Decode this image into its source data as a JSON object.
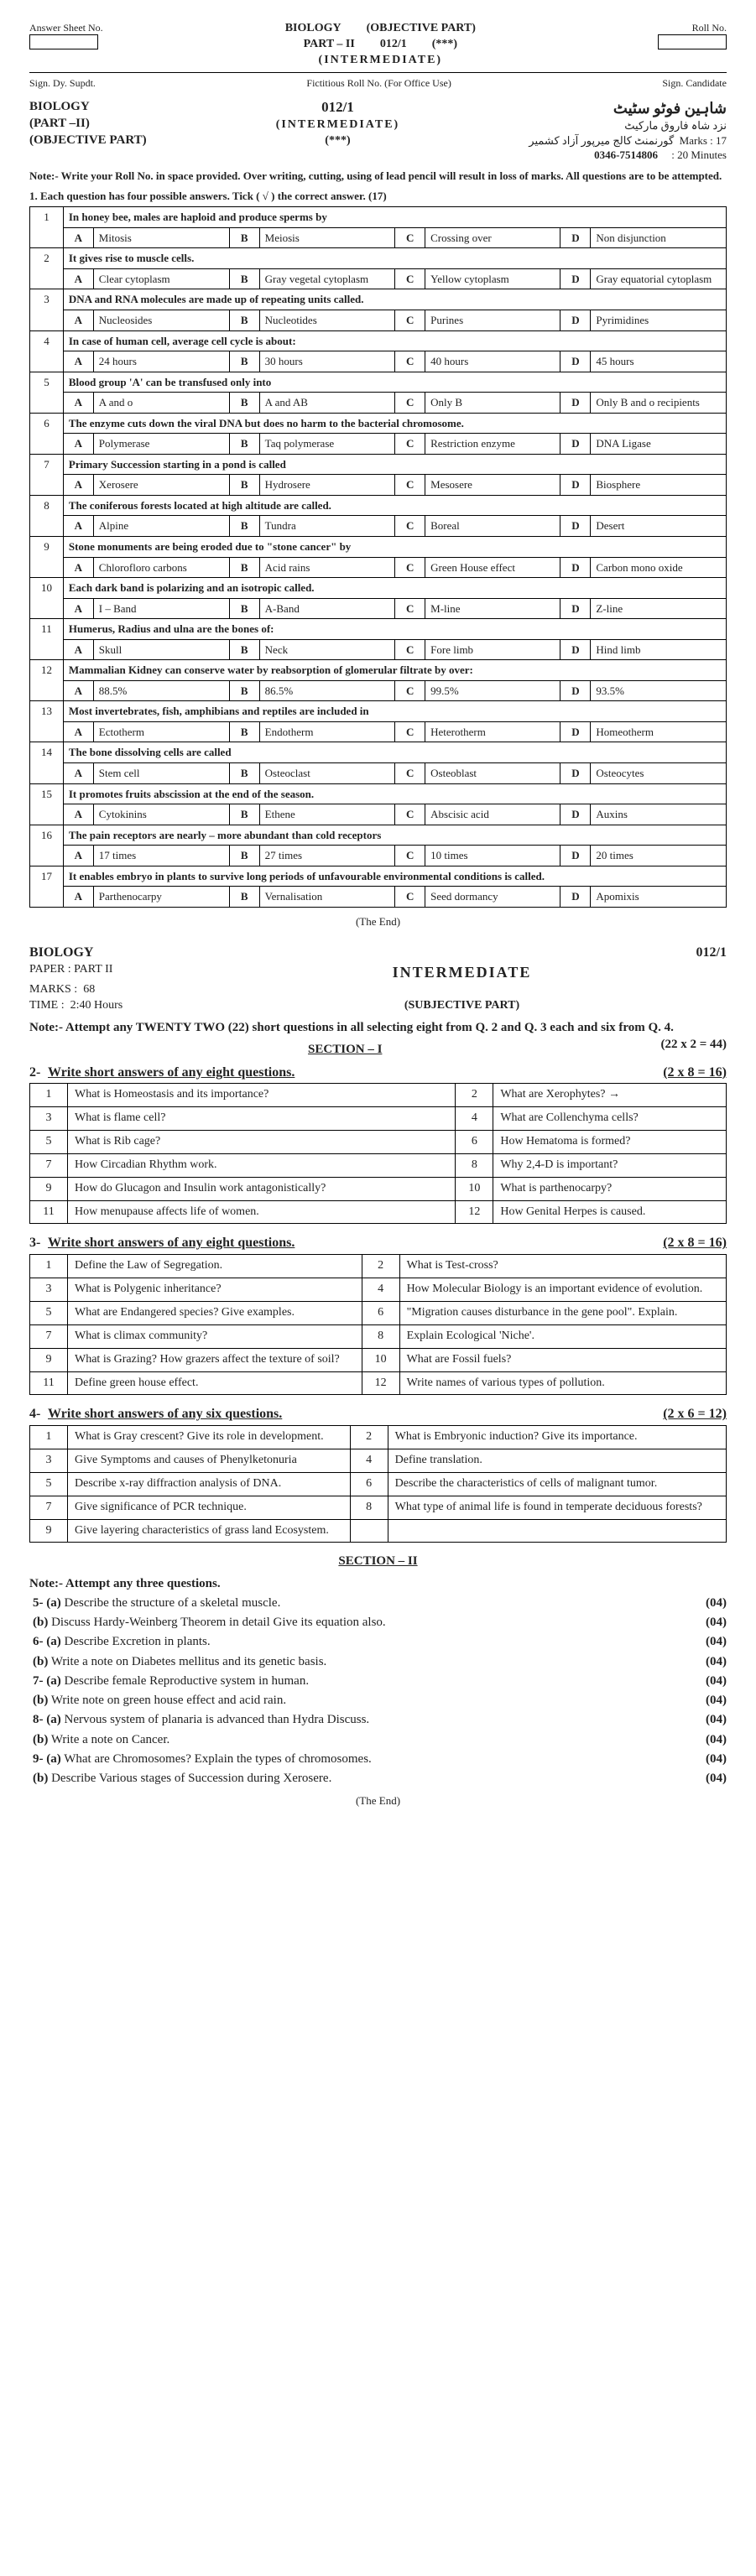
{
  "header": {
    "answerSheetLabel": "Answer Sheet No.",
    "rollNoLabel": "Roll No.",
    "subject": "BIOLOGY",
    "objectivePart": "(OBJECTIVE PART)",
    "part": "PART – II",
    "code": "012/1",
    "stars": "(***)",
    "level": "(INTERMEDIATE)",
    "sigDy": "Sign. Dy. Supdt.",
    "fictRoll": "Fictitious Roll No. (For Office Use)",
    "sigCand": "Sign. Candidate"
  },
  "obj": {
    "subj": "BIOLOGY",
    "part": "(PART –II)",
    "objPart": "(OBJECTIVE PART)",
    "code": "012/1",
    "level": "(INTERMEDIATE)",
    "stars": "(***)",
    "urdu1": "شاہین فوٹو سٹیٹ",
    "urdu2": "نزد شاہ فاروق مارکیٹ",
    "urdu3": "گورنمنٹ کالج میرپور آزاد کشمیر",
    "phone": "0346-7514806",
    "marksLab": "Marks",
    "marks": "17",
    "timeLab": "Time",
    "time": "20 Minutes",
    "note": "Note:- Write your Roll No. in space provided. Over writing, cutting, using of lead pencil will result in loss of marks. All questions are to be attempted.",
    "q1": "1.   Each question has four possible answers. Tick (  √  ) the correct answer.        (17)"
  },
  "mcq": [
    {
      "n": "1",
      "stem": "In honey bee, males are haploid and produce sperms by",
      "opts": [
        "Mitosis",
        "Meiosis",
        "Crossing over",
        "Non disjunction"
      ]
    },
    {
      "n": "2",
      "stem": "It gives rise to muscle cells.",
      "opts": [
        "Clear cytoplasm",
        "Gray vegetal cytoplasm",
        "Yellow cytoplasm",
        "Gray equatorial cytoplasm"
      ]
    },
    {
      "n": "3",
      "stem": "DNA and RNA molecules are made up of repeating units called.",
      "opts": [
        "Nucleosides",
        "Nucleotides",
        "Purines",
        "Pyrimidines"
      ]
    },
    {
      "n": "4",
      "stem": "In case of human cell, average cell cycle is about:",
      "opts": [
        "24 hours",
        "30 hours",
        "40 hours",
        "45 hours"
      ]
    },
    {
      "n": "5",
      "stem": "Blood group 'A' can be transfused only into",
      "opts": [
        "A and o",
        "A and AB",
        "Only B",
        "Only B and o recipients"
      ]
    },
    {
      "n": "6",
      "stem": "The enzyme cuts down the viral DNA but does no harm to the bacterial chromosome.",
      "opts": [
        "Polymerase",
        "Taq polymerase",
        "Restriction enzyme",
        "DNA Ligase"
      ]
    },
    {
      "n": "7",
      "stem": "Primary Succession starting in a pond is called",
      "opts": [
        "Xerosere",
        "Hydrosere",
        "Mesosere",
        "Biosphere"
      ]
    },
    {
      "n": "8",
      "stem": "The coniferous forests located at high altitude are called.",
      "opts": [
        "Alpine",
        "Tundra",
        "Boreal",
        "Desert"
      ]
    },
    {
      "n": "9",
      "stem": "Stone monuments are being eroded due to \"stone cancer\" by",
      "opts": [
        "Chlorofloro carbons",
        "Acid rains",
        "Green House effect",
        "Carbon mono oxide"
      ]
    },
    {
      "n": "10",
      "stem": "Each dark band is polarizing and an isotropic called.",
      "opts": [
        "I – Band",
        "A-Band",
        "M-line",
        "Z-line"
      ]
    },
    {
      "n": "11",
      "stem": "Humerus, Radius and ulna are the bones of:",
      "opts": [
        "Skull",
        "Neck",
        "Fore limb",
        "Hind limb"
      ]
    },
    {
      "n": "12",
      "stem": "Mammalian Kidney can conserve water by reabsorption of glomerular filtrate by over:",
      "opts": [
        "88.5%",
        "86.5%",
        "99.5%",
        "93.5%"
      ]
    },
    {
      "n": "13",
      "stem": "Most invertebrates, fish, amphibians and reptiles are included in",
      "opts": [
        "Ectotherm",
        "Endotherm",
        "Heterotherm",
        "Homeotherm"
      ]
    },
    {
      "n": "14",
      "stem": "The bone dissolving cells are called",
      "opts": [
        "Stem cell",
        "Osteoclast",
        "Osteoblast",
        "Osteocytes"
      ]
    },
    {
      "n": "15",
      "stem": "It promotes fruits abscission at the end of the season.",
      "opts": [
        "Cytokinins",
        "Ethene",
        "Abscisic acid",
        "Auxins"
      ]
    },
    {
      "n": "16",
      "stem": "The pain receptors are nearly – more abundant than cold receptors",
      "opts": [
        "17 times",
        "27 times",
        "10 times",
        "20 times"
      ]
    },
    {
      "n": "17",
      "stem": "It enables embryo in plants to survive long periods of unfavourable environmental conditions is called.",
      "opts": [
        "Parthenocarpy",
        "Vernalisation",
        "Seed dormancy",
        "Apomixis"
      ]
    }
  ],
  "theEnd": "(The  End)",
  "subj": {
    "hSubj": "BIOLOGY",
    "hCode": "012/1",
    "paper": "PAPER :  PART  II",
    "level": "INTERMEDIATE",
    "marksL": "MARKS :",
    "marks": "68",
    "timeL": "TIME  :",
    "time": "2:40 Hours",
    "subjPart": "(SUBJECTIVE PART)",
    "note": "Note:-   Attempt any TWENTY TWO (22) short questions in all selecting eight from  Q. 2 and  Q. 3 each and six from Q. 4.",
    "noteMarks": "(22 x 2 = 44)",
    "sec1": "SECTION – I"
  },
  "q2": {
    "head": "Write short answers of any eight questions.",
    "marks": "(2 x 8 = 16)",
    "rows": [
      [
        "1",
        "What is Homeostasis and its importance?",
        "2",
        "What are Xerophytes?         →"
      ],
      [
        "3",
        "What is flame cell?",
        "4",
        "What are Collenchyma cells?"
      ],
      [
        "5",
        "What is Rib cage?",
        "6",
        "How Hematoma is formed?"
      ],
      [
        "7",
        "How Circadian Rhythm work.",
        "8",
        "Why 2,4-D is important?"
      ],
      [
        "9",
        "How do Glucagon and Insulin work antagonistically?",
        "10",
        "What is parthenocarpy?"
      ],
      [
        "11",
        "How menupause affects life of women.",
        "12",
        "How Genital Herpes is caused."
      ]
    ]
  },
  "q3": {
    "head": "Write short answers of any eight questions.",
    "marks": "(2 x 8 = 16)",
    "rows": [
      [
        "1",
        "Define the Law of Segregation.",
        "2",
        "What is Test-cross?"
      ],
      [
        "3",
        "What is Polygenic inheritance?",
        "4",
        "How Molecular Biology is an important evidence of evolution."
      ],
      [
        "5",
        "What are Endangered species? Give examples.",
        "6",
        "\"Migration causes disturbance in the gene pool\". Explain."
      ],
      [
        "7",
        "What is climax community?",
        "8",
        "Explain Ecological 'Niche'."
      ],
      [
        "9",
        "What is Grazing? How grazers affect the texture of soil?",
        "10",
        "What are Fossil fuels?"
      ],
      [
        "11",
        "Define green house effect.",
        "12",
        "Write names of various types of pollution."
      ]
    ]
  },
  "q4": {
    "head": "Write short answers of any six questions.",
    "marks": "(2 x 6 = 12)",
    "rows": [
      [
        "1",
        "What is Gray crescent? Give its role in development.",
        "2",
        "What is Embryonic induction? Give its importance."
      ],
      [
        "3",
        "Give Symptoms and causes of Phenylketonuria",
        "4",
        "Define translation."
      ],
      [
        "5",
        "Describe x-ray diffraction analysis of DNA.",
        "6",
        "Describe the characteristics of cells of malignant tumor."
      ],
      [
        "7",
        "Give significance of PCR technique.",
        "8",
        "What type of animal life is found in temperate deciduous forests?"
      ],
      [
        "9",
        "Give layering characteristics of grass land Ecosystem.",
        "",
        ""
      ]
    ]
  },
  "sec2": "SECTION – II",
  "longNote": "Note:- Attempt any three questions.",
  "long": [
    {
      "n": "5- (a)",
      "t": "Describe the structure of a skeletal muscle.",
      "m": "(04)"
    },
    {
      "n": "(b)",
      "t": "Discuss Hardy-Weinberg Theorem in detail Give its equation also.",
      "m": "(04)"
    },
    {
      "n": "6- (a)",
      "t": "Describe Excretion in plants.",
      "m": "(04)"
    },
    {
      "n": "(b)",
      "t": "Write a note on Diabetes mellitus and its genetic basis.",
      "m": "(04)"
    },
    {
      "n": "7- (a)",
      "t": "Describe female Reproductive system in human.",
      "m": "(04)"
    },
    {
      "n": "(b)",
      "t": "Write note on green house effect and acid rain.",
      "m": "(04)"
    },
    {
      "n": "8- (a)",
      "t": "Nervous system of planaria is advanced than Hydra Discuss.",
      "m": "(04)"
    },
    {
      "n": "(b)",
      "t": "Write a note on Cancer.",
      "m": "(04)"
    },
    {
      "n": "9- (a)",
      "t": "What are Chromosomes? Explain the types of chromosomes.",
      "m": "(04)"
    },
    {
      "n": "(b)",
      "t": "Describe Various stages of Succession during Xerosere.",
      "m": "(04)"
    }
  ]
}
